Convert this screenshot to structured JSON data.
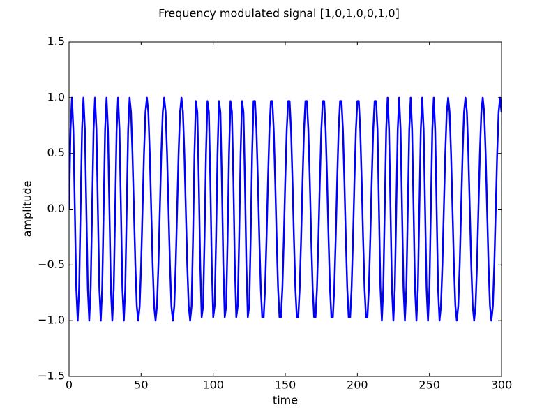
{
  "chart_data": {
    "type": "line",
    "title": "Frequency modulated signal [1,0,1,0,0,1,0]",
    "xlabel": "time",
    "ylabel": "amplitude",
    "xlim": [
      0,
      300
    ],
    "xticks": [
      0,
      50,
      100,
      150,
      200,
      250,
      300
    ],
    "ylim": [
      -1.5,
      1.5
    ],
    "yticks": [
      {
        "value": -1.5,
        "label": "−1.5"
      },
      {
        "value": -1.0,
        "label": "−1.0"
      },
      {
        "value": -0.5,
        "label": "−0.5"
      },
      {
        "value": 0,
        "label": "0.0"
      },
      0.5,
      {
        "value": 1.0,
        "label": "1.0"
      },
      1.5
    ],
    "color": "#0000ff",
    "x": [
      0,
      1,
      2,
      3,
      4,
      5,
      6,
      7,
      8,
      9,
      10,
      11,
      12,
      13,
      14,
      15,
      16,
      17,
      18,
      19,
      20,
      21,
      22,
      23,
      24,
      25,
      26,
      27,
      28,
      29,
      30,
      31,
      32,
      33,
      34,
      35,
      36,
      37,
      38,
      39,
      40,
      41,
      42,
      43,
      44,
      45,
      46,
      47,
      48,
      49,
      50,
      51,
      52,
      53,
      54,
      55,
      56,
      57,
      58,
      59,
      60,
      61,
      62,
      63,
      64,
      65,
      66,
      67,
      68,
      69,
      70,
      71,
      72,
      73,
      74,
      75,
      76,
      77,
      78,
      79,
      80,
      81,
      82,
      83,
      84,
      85,
      86,
      87,
      88,
      89,
      90,
      91,
      92,
      93,
      94,
      95,
      96,
      97,
      98,
      99,
      100,
      101,
      102,
      103,
      104,
      105,
      106,
      107,
      108,
      109,
      110,
      111,
      112,
      113,
      114,
      115,
      116,
      117,
      118,
      119,
      120,
      121,
      122,
      123,
      124,
      125,
      126,
      127,
      128,
      129,
      130,
      131,
      132,
      133,
      134,
      135,
      136,
      137,
      138,
      139,
      140,
      141,
      142,
      143,
      144,
      145,
      146,
      147,
      148,
      149,
      150,
      151,
      152,
      153,
      154,
      155,
      156,
      157,
      158,
      159,
      160,
      161,
      162,
      163,
      164,
      165,
      166,
      167,
      168,
      169,
      170,
      171,
      172,
      173,
      174,
      175,
      176,
      177,
      178,
      179,
      180,
      181,
      182,
      183,
      184,
      185,
      186,
      187,
      188,
      189,
      190,
      191,
      192,
      193,
      194,
      195,
      196,
      197,
      198,
      199,
      200,
      201,
      202,
      203,
      204,
      205,
      206,
      207,
      208,
      209,
      210,
      211,
      212,
      213,
      214,
      215,
      216,
      217,
      218,
      219,
      220,
      221,
      222,
      223,
      224,
      225,
      226,
      227,
      228,
      229,
      230,
      231,
      232,
      233,
      234,
      235,
      236,
      237,
      238,
      239,
      240,
      241,
      242,
      243,
      244,
      245,
      246,
      247,
      248,
      249,
      250,
      251,
      252,
      253,
      254,
      255,
      256,
      257,
      258,
      259,
      260,
      261,
      262,
      263,
      264,
      265,
      266,
      267,
      268,
      269,
      270,
      271,
      272,
      273,
      274,
      275,
      276,
      277,
      278,
      279,
      280,
      281,
      282,
      283,
      284,
      285,
      286,
      287,
      288,
      289,
      290,
      291,
      292,
      293,
      294,
      295,
      296,
      297,
      298,
      299,
      300
    ],
    "values": [
      0,
      0.71,
      1,
      0.71,
      0,
      -0.71,
      -1,
      -0.71,
      0,
      0.71,
      1,
      0.71,
      0,
      -0.71,
      -1,
      -0.71,
      0,
      0.71,
      1,
      0.71,
      0,
      -0.71,
      -1,
      -0.71,
      0,
      0.71,
      1,
      0.71,
      0,
      -0.71,
      -1,
      -0.71,
      0,
      0.71,
      1,
      0.71,
      0,
      -0.71,
      -1,
      -0.71,
      0,
      0.71,
      1,
      0.87,
      0.5,
      0,
      -0.5,
      -0.87,
      -1,
      -0.87,
      -0.5,
      0,
      0.5,
      0.87,
      1,
      0.87,
      0.5,
      0,
      -0.5,
      -0.87,
      -1,
      -0.87,
      -0.5,
      0,
      0.5,
      0.87,
      1,
      0.87,
      0.5,
      0,
      -0.5,
      -0.87,
      -1,
      -0.87,
      -0.5,
      0,
      0.5,
      0.87,
      1,
      0.87,
      0.5,
      0,
      -0.5,
      -0.87,
      -1,
      -0.87,
      -0.26,
      0.5,
      0.97,
      0.87,
      0.26,
      -0.5,
      -0.97,
      -0.87,
      -0.26,
      0.5,
      0.97,
      0.87,
      0.26,
      -0.5,
      -0.97,
      -0.87,
      -0.26,
      0.5,
      0.97,
      0.87,
      0.26,
      -0.5,
      -0.97,
      -0.87,
      -0.26,
      0.5,
      0.97,
      0.87,
      0.26,
      -0.5,
      -0.97,
      -0.87,
      -0.26,
      0.5,
      0.97,
      0.87,
      0.26,
      -0.5,
      -0.97,
      -0.87,
      -0.26,
      0.5,
      0.97,
      0.97,
      0.71,
      0.26,
      -0.26,
      -0.71,
      -0.97,
      -0.97,
      -0.71,
      -0.26,
      0.26,
      0.71,
      0.97,
      0.97,
      0.71,
      0.26,
      -0.26,
      -0.71,
      -0.97,
      -0.97,
      -0.71,
      -0.26,
      0.26,
      0.71,
      0.97,
      0.97,
      0.71,
      0.26,
      -0.26,
      -0.71,
      -0.97,
      -0.97,
      -0.71,
      -0.26,
      0.26,
      0.71,
      0.97,
      0.97,
      0.71,
      0.26,
      -0.26,
      -0.71,
      -0.97,
      -0.97,
      -0.71,
      -0.26,
      0.26,
      0.71,
      0.97,
      0.97,
      0.71,
      0.26,
      -0.26,
      -0.71,
      -0.97,
      -0.97,
      -0.71,
      -0.26,
      0.26,
      0.71,
      0.97,
      0.97,
      0.71,
      0.26,
      -0.26,
      -0.71,
      -0.97,
      -0.97,
      -0.71,
      -0.26,
      0.26,
      0.71,
      0.97,
      0.97,
      0.71,
      0.26,
      -0.26,
      -0.71,
      -0.97,
      -0.97,
      -0.71,
      -0.26,
      0.26,
      0.71,
      0.97,
      0.97,
      0.71,
      0,
      -0.71,
      -1,
      -0.71,
      0,
      0.71,
      1,
      0.71,
      0,
      -0.71,
      -1,
      -0.71,
      0,
      0.71,
      1,
      0.71,
      0,
      -0.71,
      -1,
      -0.71,
      0,
      0.71,
      1,
      0.71,
      0,
      -0.71,
      -1,
      -0.71,
      0,
      0.71,
      1,
      0.71,
      0,
      -0.71,
      -1,
      -0.71,
      0,
      0.71,
      1,
      0.71,
      0,
      -0.71,
      -1,
      -0.87,
      -0.5,
      0,
      0.5,
      0.87,
      1,
      0.87,
      0.5,
      0,
      -0.5,
      -0.87,
      -1,
      -0.87,
      -0.5,
      0,
      0.5,
      0.87,
      1,
      0.87,
      0.5,
      0,
      -0.5,
      -0.87,
      -1,
      -0.87,
      -0.5,
      0,
      0.5,
      0.87,
      1,
      0.87,
      0.5,
      0,
      -0.5,
      -0.87,
      -1,
      -0.87,
      -0.5,
      0,
      0.5,
      0.87,
      1,
      0.87
    ]
  }
}
